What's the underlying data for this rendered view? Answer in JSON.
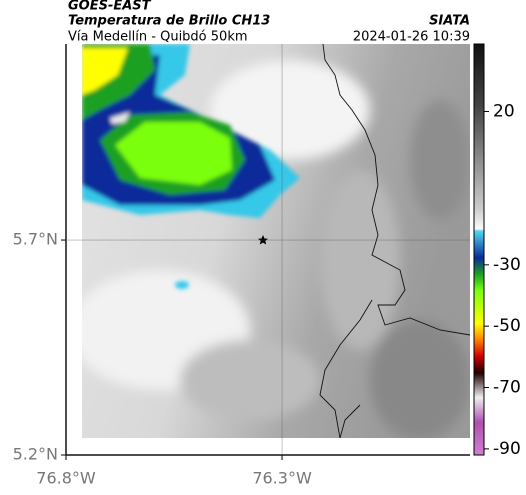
{
  "header": {
    "satellite": "GOES-EAST",
    "product": "Temperatura de Brillo CH13",
    "route": "Vía Medellín - Quibdó 50km",
    "source": "SIATA",
    "timestamp": "2024-01-26 10:39"
  },
  "map": {
    "lat_range": [
      5.2,
      6.156
    ],
    "lon_range": [
      -76.8,
      -75.865
    ],
    "lat_ticks": [
      {
        "value": 5.7,
        "label": "5.7°N"
      },
      {
        "value": 5.2,
        "label": "5.2°N"
      }
    ],
    "lon_ticks": [
      {
        "value": -76.8,
        "label": "76.8°W"
      },
      {
        "value": -76.3,
        "label": "76.3°W"
      }
    ],
    "grid": true
  },
  "colorbar": {
    "range": [
      -92,
      42
    ],
    "ticks": [
      20,
      -30,
      -50,
      -70,
      -90
    ]
  }
}
